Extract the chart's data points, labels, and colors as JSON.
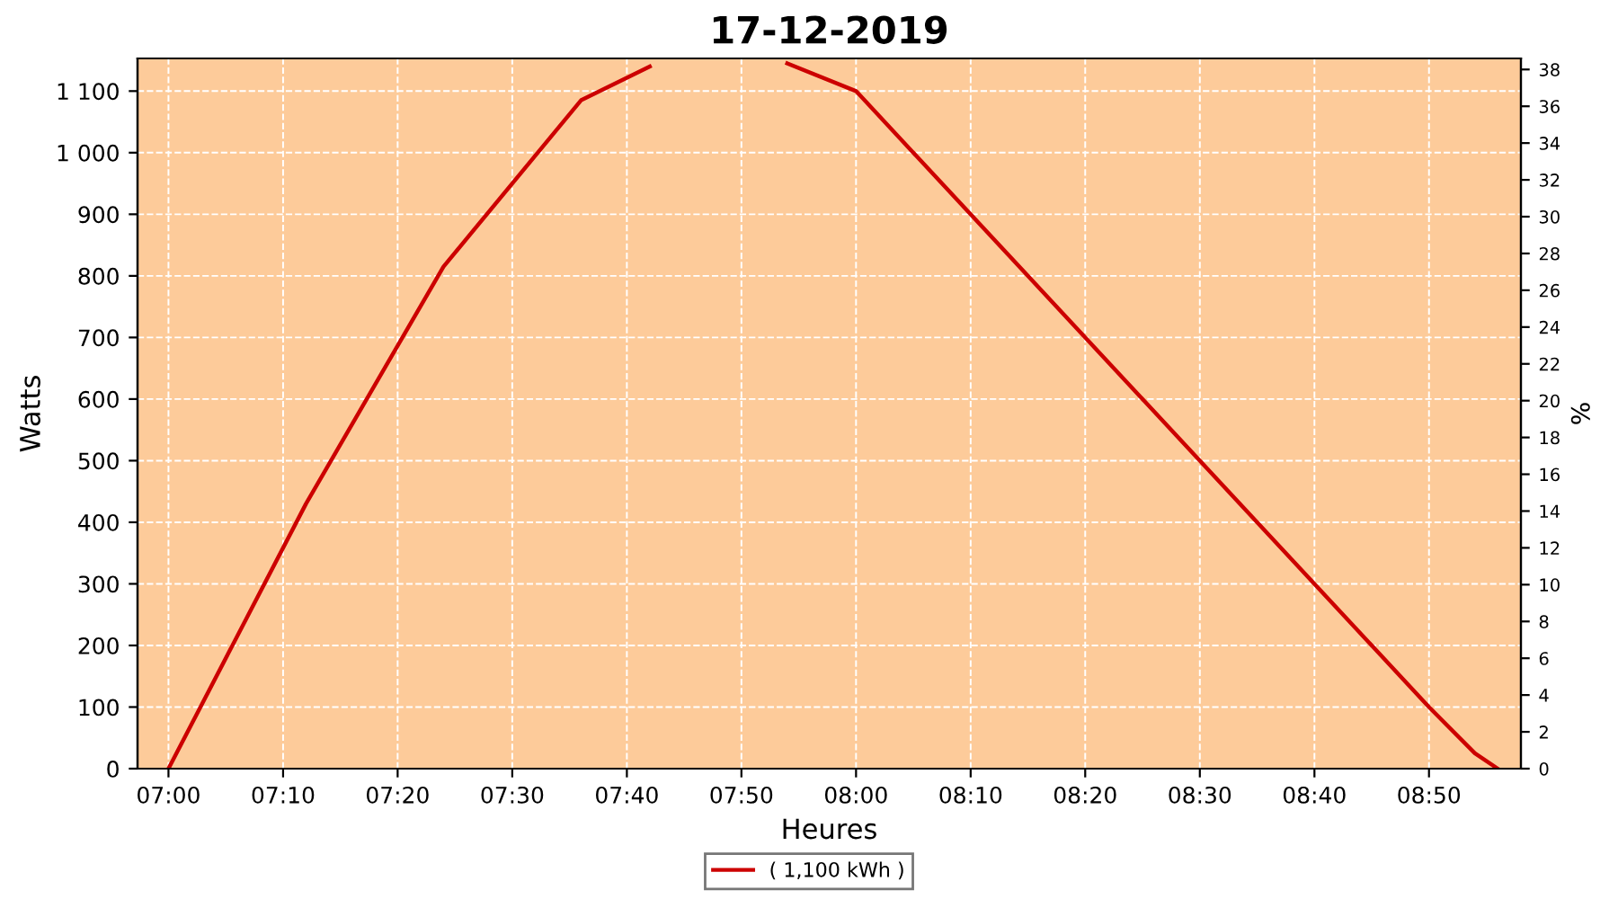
{
  "chart_data": {
    "type": "line",
    "title": "17-12-2019",
    "xlabel": "Heures",
    "ylabel": "Watts",
    "y2label": "%",
    "x": [
      7.0,
      7.2,
      7.4,
      7.6,
      7.7,
      7.8,
      7.9,
      8.0,
      8.8333,
      8.9,
      8.9333
    ],
    "series": [
      {
        "name": "( 1,100 kWh )",
        "color": "#cc0000",
        "values": [
          0,
          430,
          815,
          1085,
          1140,
          null,
          1145,
          1100,
          100,
          25,
          0
        ]
      }
    ],
    "xlim": [
      6.955,
      8.967
    ],
    "xticks": [
      {
        "value": 7.0,
        "label": "07:00"
      },
      {
        "value": 7.1667,
        "label": "07:10"
      },
      {
        "value": 7.3333,
        "label": "07:20"
      },
      {
        "value": 7.5,
        "label": "07:30"
      },
      {
        "value": 7.6667,
        "label": "07:40"
      },
      {
        "value": 7.8333,
        "label": "07:50"
      },
      {
        "value": 8.0,
        "label": "08:00"
      },
      {
        "value": 8.1667,
        "label": "08:10"
      },
      {
        "value": 8.3333,
        "label": "08:20"
      },
      {
        "value": 8.5,
        "label": "08:30"
      },
      {
        "value": 8.6667,
        "label": "08:40"
      },
      {
        "value": 8.8333,
        "label": "08:50"
      }
    ],
    "ylim": [
      0,
      1153
    ],
    "yticks": [
      0,
      100,
      200,
      300,
      400,
      500,
      600,
      700,
      800,
      900,
      {
        "value": 1000,
        "label": "1 000"
      },
      {
        "value": 1100,
        "label": "1 100"
      }
    ],
    "y2lim": [
      0,
      38.6
    ],
    "y2ticks": [
      0,
      2,
      4,
      6,
      8,
      10,
      12,
      14,
      16,
      18,
      20,
      22,
      24,
      26,
      28,
      30,
      32,
      34,
      36,
      38
    ],
    "grid": true,
    "legend": "bottom",
    "marker": "none",
    "line_style": "solid"
  }
}
